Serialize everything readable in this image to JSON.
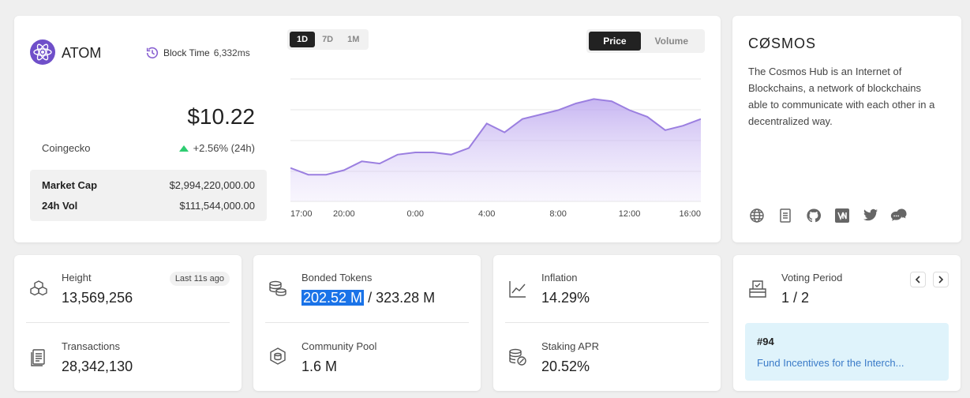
{
  "main": {
    "token": "ATOM",
    "block_time_label": "Block Time",
    "block_time_value": "6,332ms",
    "price": "$10.22",
    "source": "Coingecko",
    "change": "+2.56% (24h)",
    "change_color": "#2ecc71",
    "market_cap_label": "Market Cap",
    "market_cap_value": "$2,994,220,000.00",
    "vol_label": "24h Vol",
    "vol_value": "$111,544,000.00",
    "timeframes": [
      "1D",
      "7D",
      "1M"
    ],
    "active_timeframe": "1D",
    "views": [
      "Price",
      "Volume"
    ],
    "active_view": "Price"
  },
  "chart_data": {
    "type": "area",
    "x": [
      "17:00",
      "18:00",
      "19:00",
      "20:00",
      "21:00",
      "22:00",
      "23:00",
      "0:00",
      "1:00",
      "2:00",
      "3:00",
      "4:00",
      "5:00",
      "6:00",
      "7:00",
      "8:00",
      "9:00",
      "10:00",
      "11:00",
      "12:00",
      "13:00",
      "14:00",
      "15:00",
      "16:00"
    ],
    "values": [
      10.0,
      9.97,
      9.97,
      9.99,
      10.03,
      10.02,
      10.06,
      10.07,
      10.07,
      10.06,
      10.09,
      10.2,
      10.16,
      10.22,
      10.24,
      10.26,
      10.29,
      10.31,
      10.3,
      10.26,
      10.23,
      10.17,
      10.19,
      10.22
    ],
    "x_ticks": [
      "17:00",
      "20:00",
      "0:00",
      "4:00",
      "8:00",
      "12:00",
      "16:00"
    ],
    "color": "#9b7fe0",
    "grid": true
  },
  "about": {
    "title": "CØSMOS",
    "description": "The Cosmos Hub is an Internet of Blockchains, a network of blockchains able to communicate with each other in a decentralized way.",
    "links": [
      "globe-icon",
      "document-icon",
      "github-icon",
      "medium-icon",
      "twitter-icon",
      "chat-icon"
    ]
  },
  "height": {
    "label": "Height",
    "value": "13,569,256",
    "badge": "Last 11s ago"
  },
  "transactions": {
    "label": "Transactions",
    "value": "28,342,130"
  },
  "bonded": {
    "label": "Bonded Tokens",
    "value_bonded": "202.52 M",
    "value_total": "/ 323.28 M"
  },
  "community_pool": {
    "label": "Community Pool",
    "value": "1.6 M"
  },
  "inflation": {
    "label": "Inflation",
    "value": "14.29%"
  },
  "staking_apr": {
    "label": "Staking APR",
    "value": "20.52%"
  },
  "voting": {
    "label": "Voting Period",
    "value": "1 / 2",
    "proposal_number": "#94",
    "proposal_title": "Fund Incentives for the Interch..."
  }
}
